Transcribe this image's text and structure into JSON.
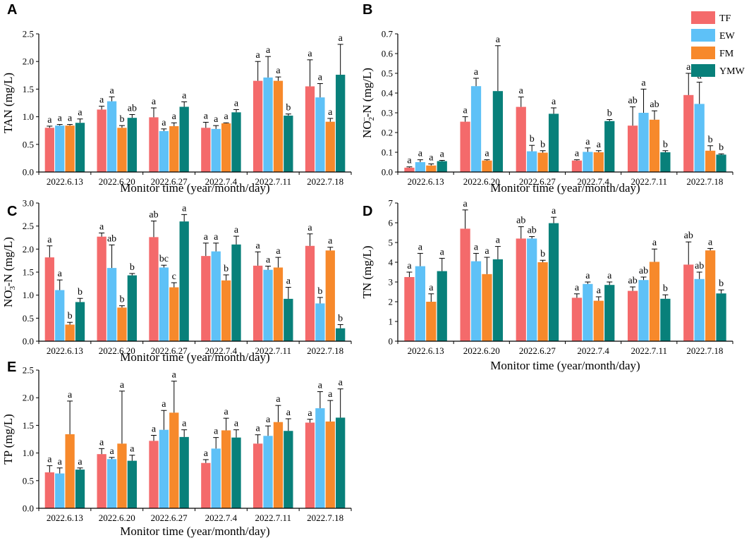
{
  "colors": {
    "TF": "#f46a6b",
    "EW": "#5ec1f7",
    "FM": "#f7892b",
    "YMW": "#08807a"
  },
  "legend": [
    "TF",
    "EW",
    "FM",
    "YMW"
  ],
  "chart_data": [
    {
      "type": "bar",
      "panel": "A",
      "categories": [
        "2022.6.13",
        "2022.6.20",
        "2022.6.27",
        "2022.7.4",
        "2022.7.11",
        "2022.7.18"
      ],
      "xlabel": "Monitor time (year/month/day)",
      "ylabel": "TAN (mg/L)",
      "ylim": [
        0,
        2.5
      ],
      "yticks": [
        "0.0",
        "0.5",
        "1.0",
        "1.5",
        "2.0",
        "2.5"
      ],
      "yticks_num": [
        0,
        0.5,
        1.0,
        1.5,
        2.0,
        2.5
      ],
      "series": [
        {
          "name": "TF",
          "values": [
            0.8,
            1.13,
            0.99,
            0.8,
            1.65,
            1.55
          ],
          "errors": [
            0.03,
            0.06,
            0.17,
            0.1,
            0.35,
            0.48
          ],
          "labels": [
            "a",
            "a",
            "a",
            "a",
            "a",
            "a"
          ]
        },
        {
          "name": "EW",
          "values": [
            0.84,
            1.28,
            0.74,
            0.78,
            1.71,
            1.35
          ],
          "errors": [
            0.02,
            0.08,
            0.04,
            0.06,
            0.38,
            0.25
          ],
          "labels": [
            "a",
            "a",
            "a",
            "a",
            "a",
            "a"
          ]
        },
        {
          "name": "FM",
          "values": [
            0.84,
            0.8,
            0.83,
            0.88,
            1.65,
            0.91
          ],
          "errors": [
            0.02,
            0.04,
            0.06,
            0.01,
            0.07,
            0.06
          ],
          "labels": [
            "a",
            "b",
            "a",
            "a",
            "a",
            "a"
          ]
        },
        {
          "name": "YMW",
          "values": [
            0.89,
            0.98,
            1.18,
            1.08,
            1.02,
            1.76
          ],
          "errors": [
            0.07,
            0.06,
            0.09,
            0.05,
            0.03,
            0.55
          ],
          "labels": [
            "a",
            "ab",
            "a",
            "a",
            "b",
            "a"
          ]
        }
      ]
    },
    {
      "type": "bar",
      "panel": "B",
      "categories": [
        "2022.6.13",
        "2022.6.20",
        "2022.6.27",
        "2022.7.4",
        "2022.7.11",
        "2022.7.18"
      ],
      "xlabel": "Monitor time (year/month/day)",
      "ylabel": "NO2–-N (mg/L)",
      "ylabel_parts": {
        "main": "NO",
        "sub": "2",
        "sup": "–",
        "rest": "-N (mg/L)"
      },
      "ylim": [
        0,
        0.7
      ],
      "yticks": [
        "0.0",
        "0.1",
        "0.2",
        "0.3",
        "0.4",
        "0.5",
        "0.6",
        "0.7"
      ],
      "yticks_num": [
        0,
        0.1,
        0.2,
        0.3,
        0.4,
        0.5,
        0.6,
        0.7
      ],
      "series": [
        {
          "name": "TF",
          "values": [
            0.022,
            0.255,
            0.33,
            0.058,
            0.235,
            0.39
          ],
          "errors": [
            0.004,
            0.025,
            0.05,
            0.004,
            0.095,
            0.11
          ],
          "labels": [
            "a",
            "a",
            "a",
            "a",
            "ab",
            "a"
          ]
        },
        {
          "name": "EW",
          "values": [
            0.05,
            0.435,
            0.105,
            0.102,
            0.3,
            0.345
          ],
          "errors": [
            0.012,
            0.04,
            0.03,
            0.02,
            0.12,
            0.11
          ],
          "labels": [
            "a",
            "a",
            "b",
            "a",
            "a",
            "a"
          ]
        },
        {
          "name": "FM",
          "values": [
            0.033,
            0.058,
            0.098,
            0.1,
            0.265,
            0.108
          ],
          "errors": [
            0.008,
            0.004,
            0.01,
            0.008,
            0.045,
            0.025
          ],
          "labels": [
            "a",
            "a",
            "b",
            "a",
            "ab",
            "b"
          ]
        },
        {
          "name": "YMW",
          "values": [
            0.055,
            0.41,
            0.295,
            0.258,
            0.1,
            0.088
          ],
          "errors": [
            0.004,
            0.23,
            0.03,
            0.008,
            0.008,
            0.004
          ],
          "labels": [
            "a",
            "a",
            "a",
            "b",
            "b",
            "b"
          ]
        }
      ]
    },
    {
      "type": "bar",
      "panel": "C",
      "categories": [
        "2022.6.13",
        "2022.6.20",
        "2022.6.27",
        "2022.7.4",
        "2022.7.11",
        "2022.7.18"
      ],
      "xlabel": "Monitor time (year/month/day)",
      "ylabel": "NO3–-N (mg/L)",
      "ylabel_parts": {
        "main": "NO",
        "sub": "3",
        "sup": "–",
        "rest": "-N (mg/L)"
      },
      "ylim": [
        0,
        3.0
      ],
      "yticks": [
        "0.0",
        "0.5",
        "1.0",
        "1.5",
        "2.0",
        "2.5",
        "3.0"
      ],
      "yticks_num": [
        0,
        0.5,
        1.0,
        1.5,
        2.0,
        2.5,
        3.0
      ],
      "series": [
        {
          "name": "TF",
          "values": [
            1.82,
            2.27,
            2.26,
            1.85,
            1.64,
            2.07
          ],
          "errors": [
            0.25,
            0.08,
            0.35,
            0.28,
            0.3,
            0.26
          ],
          "labels": [
            "a",
            "a",
            "ab",
            "a",
            "a",
            "a"
          ]
        },
        {
          "name": "EW",
          "values": [
            1.11,
            1.59,
            1.6,
            1.95,
            1.55,
            0.82
          ],
          "errors": [
            0.22,
            0.5,
            0.05,
            0.18,
            0.08,
            0.13
          ],
          "labels": [
            "a",
            "ab",
            "bc",
            "a",
            "a",
            "b"
          ]
        },
        {
          "name": "FM",
          "values": [
            0.36,
            0.73,
            1.17,
            1.32,
            1.6,
            1.97
          ],
          "errors": [
            0.05,
            0.04,
            0.1,
            0.12,
            0.22,
            0.07
          ],
          "labels": [
            "b",
            "b",
            "c",
            "b",
            "a",
            "a"
          ]
        },
        {
          "name": "YMW",
          "values": [
            0.85,
            1.43,
            2.6,
            2.1,
            0.92,
            0.28
          ],
          "errors": [
            0.08,
            0.04,
            0.15,
            0.18,
            0.25,
            0.08
          ],
          "labels": [
            "b",
            "b",
            "a",
            "a",
            "a",
            "b"
          ]
        }
      ]
    },
    {
      "type": "bar",
      "panel": "D",
      "categories": [
        "2022.6.13",
        "2022.6.20",
        "2022.6.27",
        "2022.7.4",
        "2022.7.11",
        "2022.7.18"
      ],
      "xlabel": "Monitor time (year/month/day)",
      "ylabel": "TN (mg/L)",
      "ylim": [
        0,
        7
      ],
      "yticks": [
        "0",
        "1",
        "2",
        "3",
        "4",
        "5",
        "6",
        "7"
      ],
      "yticks_num": [
        0,
        1,
        2,
        3,
        4,
        5,
        6,
        7
      ],
      "series": [
        {
          "name": "TF",
          "values": [
            3.25,
            5.7,
            5.2,
            2.2,
            2.55,
            3.88
          ],
          "errors": [
            0.25,
            0.95,
            0.6,
            0.2,
            0.2,
            1.15
          ],
          "labels": [
            "a",
            "a",
            "ab",
            "a",
            "ab",
            "ab"
          ]
        },
        {
          "name": "EW",
          "values": [
            3.8,
            4.05,
            5.2,
            2.9,
            3.1,
            3.15
          ],
          "errors": [
            0.65,
            0.4,
            0.1,
            0.1,
            0.15,
            0.35
          ],
          "labels": [
            "a",
            "a",
            "ab",
            "a",
            "ab",
            "ab"
          ]
        },
        {
          "name": "FM",
          "values": [
            2.0,
            3.4,
            4.0,
            2.05,
            4.02,
            4.6
          ],
          "errors": [
            0.4,
            0.85,
            0.1,
            0.2,
            0.65,
            0.1
          ],
          "labels": [
            "a",
            "a",
            "b",
            "a",
            "a",
            "a"
          ]
        },
        {
          "name": "YMW",
          "values": [
            3.55,
            4.15,
            5.98,
            2.85,
            2.15,
            2.42
          ],
          "errors": [
            0.65,
            0.65,
            0.3,
            0.15,
            0.2,
            0.18
          ],
          "labels": [
            "a",
            "a",
            "a",
            "a",
            "b",
            "b"
          ]
        }
      ]
    },
    {
      "type": "bar",
      "panel": "E",
      "categories": [
        "2022.6.13",
        "2022.6.20",
        "2022.6.27",
        "2022.7.4",
        "2022.7.11",
        "2022.7.18"
      ],
      "xlabel": "Monitor time (year/month/day)",
      "ylabel": "TP (mg/L)",
      "ylim": [
        0,
        2.5
      ],
      "yticks": [
        "0.0",
        "0.5",
        "1.0",
        "1.5",
        "2.0",
        "2.5"
      ],
      "yticks_num": [
        0,
        0.5,
        1.0,
        1.5,
        2.0,
        2.5
      ],
      "series": [
        {
          "name": "TF",
          "values": [
            0.65,
            0.98,
            1.22,
            0.82,
            1.17,
            1.55
          ],
          "errors": [
            0.12,
            0.1,
            0.1,
            0.06,
            0.16,
            0.06
          ],
          "labels": [
            "a",
            "a",
            "a",
            "a",
            "a",
            "a"
          ]
        },
        {
          "name": "EW",
          "values": [
            0.63,
            0.89,
            1.42,
            1.08,
            1.31,
            1.81
          ],
          "errors": [
            0.1,
            0.03,
            0.35,
            0.2,
            0.18,
            0.3
          ],
          "labels": [
            "a",
            "a",
            "a",
            "a",
            "a",
            "a"
          ]
        },
        {
          "name": "FM",
          "values": [
            1.34,
            1.17,
            1.73,
            1.41,
            1.56,
            1.57
          ],
          "errors": [
            0.6,
            0.95,
            0.57,
            0.22,
            0.3,
            0.38
          ],
          "labels": [
            "a",
            "a",
            "a",
            "a",
            "a",
            "a"
          ]
        },
        {
          "name": "YMW",
          "values": [
            0.7,
            0.86,
            1.29,
            1.28,
            1.4,
            1.64
          ],
          "errors": [
            0.03,
            0.1,
            0.13,
            0.14,
            0.22,
            0.52
          ],
          "labels": [
            "a",
            "a",
            "a",
            "a",
            "a",
            "a"
          ]
        }
      ]
    }
  ]
}
